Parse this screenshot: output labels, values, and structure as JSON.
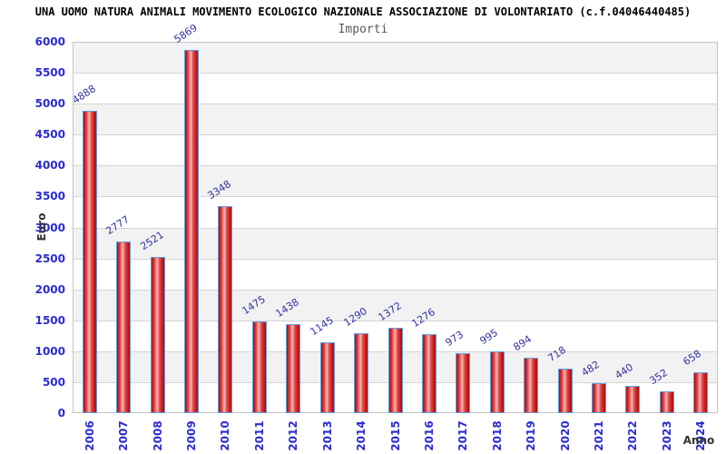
{
  "header": {
    "title": "UNA UOMO NATURA ANIMALI MOVIMENTO ECOLOGICO NAZIONALE ASSOCIAZIONE DI VOLONTARIATO (c.f.04046440485)",
    "subtitle": "Importi"
  },
  "chart_data": {
    "type": "bar",
    "title": "Importi",
    "xlabel": "Anno",
    "ylabel": "Euro",
    "categories": [
      "2006",
      "2007",
      "2008",
      "2009",
      "2010",
      "2011",
      "2012",
      "2013",
      "2014",
      "2015",
      "2016",
      "2017",
      "2018",
      "2019",
      "2020",
      "2021",
      "2022",
      "2023",
      "2024"
    ],
    "values": [
      4888,
      2777,
      2521,
      5869,
      3348,
      1475,
      1438,
      1145,
      1290,
      1372,
      1276,
      973,
      995,
      894,
      718,
      482,
      440,
      352,
      658
    ],
    "ylim": [
      0,
      6000
    ],
    "ytick_step": 500,
    "ytick_labels": [
      "0",
      "500",
      "1000",
      "1500",
      "2000",
      "2500",
      "3000",
      "3500",
      "4000",
      "4500",
      "5000",
      "5500",
      "6000"
    ],
    "grid": "horizontal-bands-alternating",
    "legend": "none",
    "colors": {
      "title": "#000000",
      "subtitle": "#595959",
      "band_gray": "#f2f2f2",
      "band_white": "#ffffff",
      "gridline": "#d4d4d4",
      "plot_border": "#c4c4c4",
      "bar_border": "#5f9fdf",
      "bar_red_dark": "#a81010",
      "bar_red_mid": "#d93030",
      "bar_red_light": "#f6b6b6",
      "value_label": "#32329f",
      "tick_label": "#2b2bcf",
      "axis_title": "#333333"
    }
  }
}
